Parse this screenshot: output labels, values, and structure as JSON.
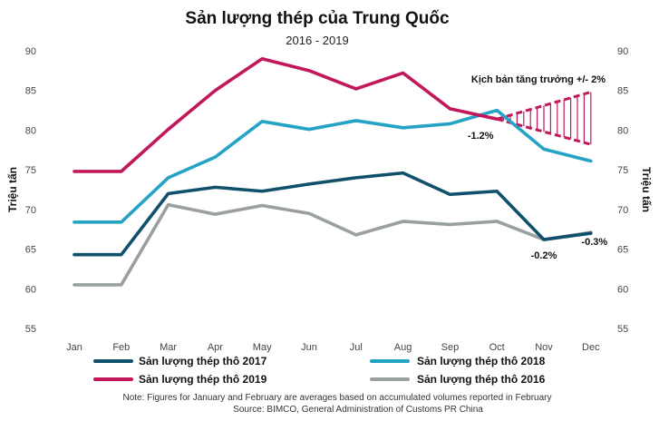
{
  "chart_data": {
    "type": "line",
    "title": "Sản lượng thép của Trung Quốc",
    "subtitle": "2016 - 2019",
    "ylabel_left": "Triệu tấn",
    "ylabel_right": "Triệu tấn",
    "categories": [
      "Jan",
      "Feb",
      "Mar",
      "Apr",
      "May",
      "Jun",
      "Jul",
      "Aug",
      "Sep",
      "Oct",
      "Nov",
      "Dec"
    ],
    "ylim": [
      55,
      90
    ],
    "yticks": [
      55,
      60,
      65,
      70,
      75,
      80,
      85,
      90
    ],
    "grid": false,
    "legend_position": "bottom",
    "series": [
      {
        "name": "Sản lượng thép thô 2017",
        "color": "#10506b",
        "values": [
          64.3,
          64.3,
          72.0,
          72.8,
          72.3,
          73.2,
          74.0,
          74.6,
          71.9,
          72.3,
          66.2,
          67.0
        ]
      },
      {
        "name": "Sản lượng thép thô 2018",
        "color": "#25a3c4",
        "values": [
          68.4,
          68.4,
          74.0,
          76.6,
          81.1,
          80.1,
          81.2,
          80.3,
          80.8,
          82.5,
          77.6,
          76.1
        ]
      },
      {
        "name": "Sản lượng thép thô 2019",
        "color": "#c2185b",
        "values": [
          74.8,
          74.8,
          80.1,
          85.0,
          89.0,
          87.5,
          85.2,
          87.2,
          82.7,
          81.4,
          null,
          null
        ]
      },
      {
        "name": "Sản lượng thép thô 2016",
        "color": "#9aa0a1",
        "values": [
          60.5,
          60.5,
          70.6,
          69.4,
          70.5,
          69.5,
          66.8,
          68.5,
          68.1,
          68.5,
          66.2,
          67.1
        ]
      }
    ],
    "scenario": {
      "label": "Kịch bản tăng trưởng +/- 2%",
      "color": "#c2185b",
      "start": {
        "x": "Oct",
        "y": 81.4
      },
      "upper_end": {
        "x": "Dec",
        "y": 84.8
      },
      "lower_end": {
        "x": "Dec",
        "y": 78.2
      }
    },
    "annotations": [
      {
        "text": "-1.2%",
        "x": "Oct",
        "y": 81.4
      },
      {
        "text": "-0.2%",
        "x": "Nov",
        "y": 66.2
      },
      {
        "text": "-0.3%",
        "x": "Dec",
        "y": 67.0
      }
    ],
    "note": "Note: Figures for January and February are averages based on accumulated volumes reported in February",
    "source": "Source: BIMCO, General Administration  of Customs PR China"
  }
}
